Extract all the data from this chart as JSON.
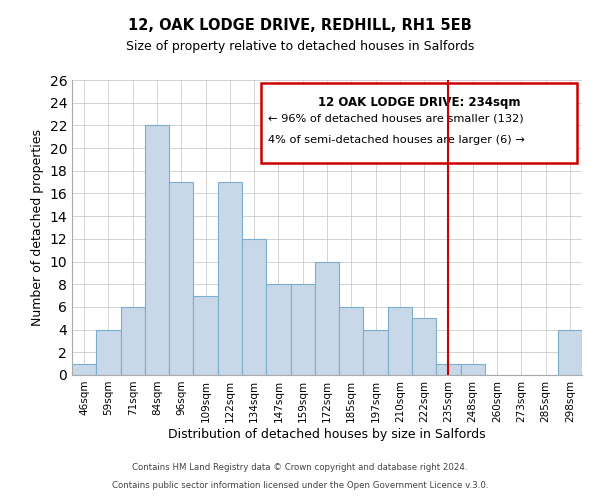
{
  "title": "12, OAK LODGE DRIVE, REDHILL, RH1 5EB",
  "subtitle": "Size of property relative to detached houses in Salfords",
  "xlabel": "Distribution of detached houses by size in Salfords",
  "ylabel": "Number of detached properties",
  "bin_labels": [
    "46sqm",
    "59sqm",
    "71sqm",
    "84sqm",
    "96sqm",
    "109sqm",
    "122sqm",
    "134sqm",
    "147sqm",
    "159sqm",
    "172sqm",
    "185sqm",
    "197sqm",
    "210sqm",
    "222sqm",
    "235sqm",
    "248sqm",
    "260sqm",
    "273sqm",
    "285sqm",
    "298sqm"
  ],
  "bar_heights": [
    1,
    4,
    6,
    22,
    17,
    7,
    17,
    12,
    8,
    8,
    10,
    6,
    4,
    6,
    5,
    1,
    1,
    0,
    0,
    0,
    4
  ],
  "bar_color": "#c8d8e8",
  "bar_edge_color": "#7aaecc",
  "vline_index": 15,
  "vline_color": "#cc0000",
  "annotation_title": "12 OAK LODGE DRIVE: 234sqm",
  "annotation_line1": "← 96% of detached houses are smaller (132)",
  "annotation_line2": "4% of semi-detached houses are larger (6) →",
  "annotation_box_color": "#cc0000",
  "ylim": [
    0,
    26
  ],
  "yticks": [
    0,
    2,
    4,
    6,
    8,
    10,
    12,
    14,
    16,
    18,
    20,
    22,
    24,
    26
  ],
  "footer1": "Contains HM Land Registry data © Crown copyright and database right 2024.",
  "footer2": "Contains public sector information licensed under the Open Government Licence v.3.0."
}
